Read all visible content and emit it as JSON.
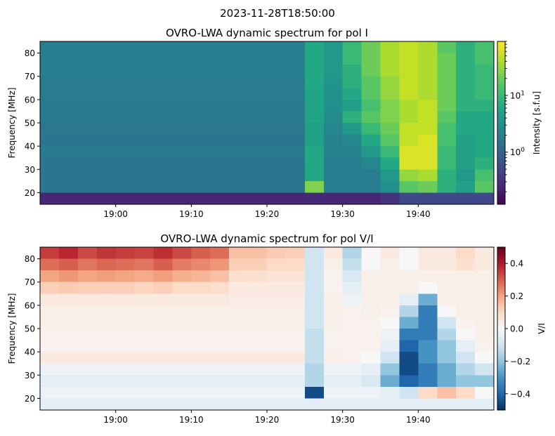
{
  "suptitle": "2023-11-28T18:50:00",
  "chart_data": [
    {
      "type": "heatmap",
      "title": "OVRO-LWA dynamic spectrum for pol I",
      "ylabel": "Frequency [MHz]",
      "xlabel": "",
      "x_start": "18:50",
      "x_end": "19:50",
      "xlim_minutes": [
        0,
        60
      ],
      "xticks": [
        {
          "label": "19:00",
          "min": 10
        },
        {
          "label": "19:10",
          "min": 20
        },
        {
          "label": "19:20",
          "min": 30
        },
        {
          "label": "19:30",
          "min": 40
        },
        {
          "label": "19:40",
          "min": 50
        }
      ],
      "ylim": [
        15,
        85
      ],
      "yticks": [
        20,
        30,
        40,
        50,
        60,
        70,
        80
      ],
      "freq_bins_top_to_bottom": [
        "80-85",
        "75-80",
        "70-75",
        "65-70",
        "60-65",
        "55-60",
        "50-55",
        "45-50",
        "40-45",
        "35-40",
        "30-35",
        "25-30",
        "20-25",
        "15-20"
      ],
      "time_bin_minutes": 2.5,
      "value_scale": "log10",
      "colormap": "viridis",
      "colorbar": {
        "label": "Intensity [s.f.u]",
        "scale": "log",
        "vmin": 0.12,
        "vmax": 90,
        "ticks": [
          {
            "label": "10",
            "exp": "0",
            "value": 1
          },
          {
            "label": "10",
            "exp": "1",
            "value": 10
          }
        ]
      },
      "z": [
        [
          0.3,
          0.3,
          0.3,
          0.3,
          0.3,
          0.3,
          0.3,
          0.3,
          0.3,
          0.3,
          0.3,
          0.3,
          0.3,
          0.3,
          0.8,
          0.6,
          1.0,
          1.3,
          1.6,
          1.7,
          1.6,
          1.2,
          0.9,
          1.1
        ],
        [
          0.3,
          0.3,
          0.3,
          0.3,
          0.3,
          0.3,
          0.3,
          0.3,
          0.3,
          0.3,
          0.3,
          0.3,
          0.3,
          0.3,
          0.8,
          0.6,
          1.0,
          1.3,
          1.6,
          1.7,
          1.6,
          1.3,
          0.9,
          1.1
        ],
        [
          0.3,
          0.3,
          0.3,
          0.3,
          0.3,
          0.3,
          0.3,
          0.3,
          0.3,
          0.3,
          0.3,
          0.3,
          0.3,
          0.3,
          0.8,
          0.6,
          0.9,
          1.3,
          1.6,
          1.7,
          1.6,
          1.3,
          0.9,
          1.0
        ],
        [
          0.28,
          0.28,
          0.28,
          0.28,
          0.28,
          0.28,
          0.28,
          0.28,
          0.28,
          0.28,
          0.28,
          0.28,
          0.28,
          0.28,
          0.8,
          0.55,
          0.9,
          1.2,
          1.5,
          1.7,
          1.6,
          1.3,
          0.9,
          1.0
        ],
        [
          0.27,
          0.27,
          0.27,
          0.27,
          0.27,
          0.27,
          0.27,
          0.27,
          0.27,
          0.27,
          0.27,
          0.27,
          0.27,
          0.27,
          0.75,
          0.5,
          0.8,
          1.2,
          1.5,
          1.7,
          1.6,
          1.3,
          0.9,
          1.0
        ],
        [
          0.25,
          0.25,
          0.25,
          0.25,
          0.25,
          0.25,
          0.25,
          0.25,
          0.25,
          0.25,
          0.25,
          0.25,
          0.25,
          0.25,
          0.75,
          0.5,
          0.7,
          1.1,
          1.4,
          1.6,
          1.7,
          1.3,
          0.9,
          0.9
        ],
        [
          0.25,
          0.25,
          0.25,
          0.25,
          0.25,
          0.25,
          0.25,
          0.25,
          0.25,
          0.25,
          0.25,
          0.25,
          0.25,
          0.25,
          0.75,
          0.45,
          0.9,
          1.2,
          1.4,
          1.6,
          1.7,
          1.2,
          0.8,
          0.8
        ],
        [
          0.22,
          0.22,
          0.22,
          0.22,
          0.22,
          0.22,
          0.22,
          0.22,
          0.22,
          0.22,
          0.22,
          0.22,
          0.22,
          0.22,
          0.7,
          0.4,
          0.6,
          1.0,
          1.3,
          1.7,
          1.7,
          1.1,
          0.8,
          0.8
        ],
        [
          0.2,
          0.2,
          0.2,
          0.2,
          0.2,
          0.2,
          0.2,
          0.2,
          0.2,
          0.2,
          0.2,
          0.2,
          0.2,
          0.2,
          0.7,
          0.35,
          0.4,
          0.8,
          1.2,
          1.7,
          1.8,
          1.1,
          0.7,
          0.8
        ],
        [
          0.25,
          0.25,
          0.25,
          0.25,
          0.25,
          0.25,
          0.25,
          0.25,
          0.25,
          0.25,
          0.25,
          0.25,
          0.25,
          0.25,
          0.8,
          0.35,
          0.35,
          0.6,
          1.0,
          1.8,
          1.8,
          1.0,
          0.7,
          0.8
        ],
        [
          0.2,
          0.2,
          0.2,
          0.2,
          0.2,
          0.2,
          0.2,
          0.2,
          0.2,
          0.2,
          0.2,
          0.2,
          0.2,
          0.2,
          0.8,
          0.3,
          0.3,
          0.4,
          0.8,
          1.8,
          1.8,
          1.0,
          0.7,
          0.9
        ],
        [
          0.2,
          0.2,
          0.2,
          0.2,
          0.2,
          0.2,
          0.2,
          0.2,
          0.2,
          0.2,
          0.2,
          0.2,
          0.2,
          0.2,
          0.8,
          0.3,
          0.3,
          0.3,
          0.6,
          1.5,
          1.6,
          0.9,
          0.6,
          1.1
        ],
        [
          0.2,
          0.2,
          0.2,
          0.2,
          0.2,
          0.2,
          0.2,
          0.2,
          0.2,
          0.2,
          0.2,
          0.2,
          0.2,
          0.2,
          1.4,
          0.3,
          0.3,
          0.3,
          0.5,
          1.2,
          1.3,
          0.9,
          0.7,
          1.2
        ],
        [
          -0.6,
          -0.6,
          -0.6,
          -0.6,
          -0.6,
          -0.6,
          -0.6,
          -0.6,
          -0.6,
          -0.6,
          -0.6,
          -0.6,
          -0.6,
          -0.6,
          -0.6,
          -0.6,
          -0.6,
          -0.6,
          -0.5,
          -0.3,
          -0.3,
          -0.3,
          -0.3,
          -0.3
        ]
      ]
    },
    {
      "type": "heatmap",
      "title": "OVRO-LWA dynamic spectrum for pol V/I",
      "ylabel": "Frequency [MHz]",
      "xlabel": "",
      "x_start": "18:50",
      "x_end": "19:50",
      "xlim_minutes": [
        0,
        60
      ],
      "xticks": [
        {
          "label": "19:00",
          "min": 10
        },
        {
          "label": "19:10",
          "min": 20
        },
        {
          "label": "19:20",
          "min": 30
        },
        {
          "label": "19:30",
          "min": 40
        },
        {
          "label": "19:40",
          "min": 50
        }
      ],
      "ylim": [
        15,
        85
      ],
      "yticks": [
        20,
        30,
        40,
        50,
        60,
        70,
        80
      ],
      "time_bin_minutes": 2.5,
      "value_scale": "linear",
      "colormap": "RdBu_r",
      "colorbar": {
        "label": "V/I",
        "scale": "linear",
        "vmin": -0.5,
        "vmax": 0.5,
        "ticks": [
          {
            "label": "0.4",
            "value": 0.4
          },
          {
            "label": "0.2",
            "value": 0.2
          },
          {
            "label": "0.0",
            "value": 0.0
          },
          {
            "label": "−0.2",
            "value": -0.2
          },
          {
            "label": "−0.4",
            "value": -0.4
          }
        ]
      },
      "z": [
        [
          0.35,
          0.38,
          0.33,
          0.36,
          0.35,
          0.34,
          0.37,
          0.33,
          0.3,
          0.28,
          0.15,
          0.15,
          0.13,
          0.12,
          -0.1,
          0.05,
          -0.15,
          0.0,
          0.05,
          0.0,
          0.05,
          0.05,
          0.1,
          0.05
        ],
        [
          0.28,
          0.3,
          0.27,
          0.29,
          0.28,
          0.27,
          0.3,
          0.26,
          0.24,
          0.22,
          0.12,
          0.12,
          0.1,
          0.1,
          -0.1,
          0.03,
          -0.12,
          0.0,
          0.03,
          0.0,
          0.05,
          0.05,
          0.08,
          0.05
        ],
        [
          0.2,
          0.22,
          0.2,
          0.21,
          0.2,
          0.19,
          0.21,
          0.18,
          0.17,
          0.15,
          0.08,
          0.08,
          0.07,
          0.07,
          -0.1,
          0.02,
          -0.08,
          0.03,
          0.03,
          0.03,
          0.03,
          0.03,
          0.03,
          0.03
        ],
        [
          0.12,
          0.13,
          0.12,
          0.12,
          0.12,
          0.11,
          0.12,
          0.1,
          0.1,
          0.09,
          0.05,
          0.05,
          0.05,
          0.05,
          -0.1,
          0.02,
          -0.05,
          0.03,
          0.03,
          0.03,
          0.0,
          0.03,
          0.03,
          0.03
        ],
        [
          0.05,
          0.05,
          0.05,
          0.05,
          0.05,
          0.05,
          0.05,
          0.05,
          0.05,
          0.05,
          0.04,
          0.04,
          0.04,
          0.04,
          -0.1,
          0.03,
          -0.03,
          0.03,
          0.03,
          -0.05,
          -0.25,
          0.03,
          0.03,
          0.03
        ],
        [
          0.03,
          0.03,
          0.03,
          0.03,
          0.03,
          0.03,
          0.03,
          0.03,
          0.03,
          0.03,
          0.03,
          0.03,
          0.03,
          0.03,
          -0.1,
          0.03,
          0.02,
          0.03,
          0.02,
          -0.15,
          -0.35,
          0.0,
          0.03,
          0.03
        ],
        [
          0.03,
          0.03,
          0.03,
          0.03,
          0.03,
          0.03,
          0.03,
          0.03,
          0.03,
          0.03,
          0.03,
          0.03,
          0.03,
          0.03,
          -0.1,
          0.03,
          0.02,
          0.02,
          0.0,
          -0.25,
          -0.35,
          -0.1,
          0.02,
          0.03
        ],
        [
          0.02,
          0.02,
          0.02,
          0.02,
          0.02,
          0.02,
          0.02,
          0.02,
          0.02,
          0.02,
          0.02,
          0.02,
          0.02,
          0.02,
          -0.12,
          0.02,
          0.02,
          0.02,
          -0.03,
          -0.35,
          -0.35,
          -0.15,
          0.0,
          0.03
        ],
        [
          0.02,
          0.02,
          0.02,
          0.02,
          0.02,
          0.02,
          0.02,
          0.02,
          0.02,
          0.02,
          0.02,
          0.02,
          0.02,
          0.02,
          -0.12,
          0.02,
          0.02,
          0.02,
          -0.05,
          -0.4,
          -0.3,
          -0.2,
          -0.05,
          0.02
        ],
        [
          0.05,
          0.05,
          0.05,
          0.05,
          0.05,
          0.05,
          0.05,
          0.05,
          0.05,
          0.05,
          0.05,
          0.05,
          0.05,
          0.05,
          -0.12,
          0.03,
          0.02,
          0.0,
          -0.1,
          -0.45,
          -0.3,
          -0.2,
          -0.1,
          0.0
        ],
        [
          -0.03,
          -0.03,
          -0.03,
          -0.03,
          -0.03,
          -0.03,
          -0.03,
          -0.03,
          -0.03,
          -0.03,
          -0.03,
          -0.03,
          -0.03,
          -0.03,
          -0.15,
          -0.03,
          -0.03,
          -0.05,
          -0.2,
          -0.45,
          -0.35,
          -0.25,
          -0.15,
          -0.1
        ],
        [
          -0.05,
          -0.05,
          -0.05,
          -0.05,
          -0.05,
          -0.05,
          -0.05,
          -0.05,
          -0.05,
          -0.05,
          -0.05,
          -0.05,
          -0.05,
          -0.05,
          -0.15,
          -0.05,
          -0.05,
          -0.08,
          -0.25,
          -0.4,
          -0.35,
          -0.25,
          -0.2,
          -0.2
        ],
        [
          -0.03,
          -0.03,
          -0.03,
          -0.03,
          -0.03,
          -0.03,
          -0.03,
          -0.03,
          -0.03,
          -0.03,
          -0.03,
          -0.03,
          -0.03,
          -0.03,
          -0.45,
          -0.03,
          -0.03,
          -0.03,
          -0.05,
          -0.1,
          0.1,
          0.15,
          0.1,
          0.0
        ],
        [
          -0.05,
          -0.05,
          -0.05,
          -0.05,
          -0.05,
          -0.05,
          -0.05,
          -0.05,
          -0.05,
          -0.05,
          -0.05,
          -0.05,
          -0.05,
          -0.05,
          -0.05,
          -0.05,
          -0.05,
          -0.05,
          -0.05,
          -0.05,
          -0.05,
          -0.05,
          -0.05,
          -0.05
        ]
      ]
    }
  ]
}
